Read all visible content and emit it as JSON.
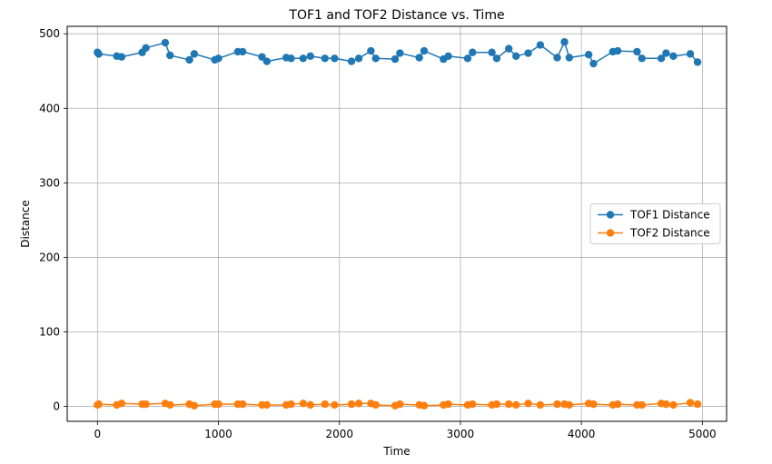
{
  "chart_data": {
    "type": "line",
    "title": "TOF1 and TOF2 Distance vs. Time",
    "xlabel": "Time",
    "ylabel": "Distance",
    "xlim": [
      -250,
      5200
    ],
    "ylim": [
      -20,
      510
    ],
    "xticks": [
      0,
      1000,
      2000,
      3000,
      4000,
      5000
    ],
    "yticks": [
      0,
      100,
      200,
      300,
      400,
      500
    ],
    "grid": true,
    "legend_position": "center-right",
    "series": [
      {
        "name": "TOF1 Distance",
        "color": "#1f77b4",
        "marker": "circle",
        "points": [
          [
            0,
            475
          ],
          [
            10,
            473
          ],
          [
            160,
            470
          ],
          [
            200,
            469
          ],
          [
            370,
            475
          ],
          [
            400,
            481
          ],
          [
            560,
            488
          ],
          [
            600,
            471
          ],
          [
            760,
            465
          ],
          [
            800,
            473
          ],
          [
            970,
            465
          ],
          [
            1000,
            467
          ],
          [
            1160,
            476
          ],
          [
            1200,
            476
          ],
          [
            1360,
            469
          ],
          [
            1400,
            463
          ],
          [
            1560,
            468
          ],
          [
            1600,
            467
          ],
          [
            1700,
            467
          ],
          [
            1760,
            470
          ],
          [
            1880,
            467
          ],
          [
            1960,
            467
          ],
          [
            2100,
            463
          ],
          [
            2160,
            467
          ],
          [
            2260,
            477
          ],
          [
            2300,
            467
          ],
          [
            2460,
            466
          ],
          [
            2500,
            474
          ],
          [
            2660,
            468
          ],
          [
            2700,
            477
          ],
          [
            2860,
            466
          ],
          [
            2900,
            470
          ],
          [
            3060,
            467
          ],
          [
            3100,
            475
          ],
          [
            3260,
            475
          ],
          [
            3300,
            467
          ],
          [
            3400,
            480
          ],
          [
            3460,
            470
          ],
          [
            3560,
            474
          ],
          [
            3660,
            485
          ],
          [
            3800,
            468
          ],
          [
            3860,
            489
          ],
          [
            3900,
            468
          ],
          [
            4060,
            472
          ],
          [
            4100,
            460
          ],
          [
            4260,
            476
          ],
          [
            4300,
            477
          ],
          [
            4460,
            476
          ],
          [
            4500,
            467
          ],
          [
            4660,
            467
          ],
          [
            4700,
            474
          ],
          [
            4760,
            470
          ],
          [
            4900,
            473
          ],
          [
            4960,
            462
          ]
        ]
      },
      {
        "name": "TOF2 Distance",
        "color": "#ff7f0e",
        "marker": "circle",
        "points": [
          [
            0,
            2
          ],
          [
            10,
            3
          ],
          [
            160,
            2
          ],
          [
            200,
            4
          ],
          [
            370,
            3
          ],
          [
            400,
            3
          ],
          [
            560,
            4
          ],
          [
            600,
            2
          ],
          [
            760,
            3
          ],
          [
            800,
            1
          ],
          [
            970,
            3
          ],
          [
            1000,
            3
          ],
          [
            1160,
            3
          ],
          [
            1200,
            3
          ],
          [
            1360,
            2
          ],
          [
            1400,
            2
          ],
          [
            1560,
            2
          ],
          [
            1600,
            3
          ],
          [
            1700,
            4
          ],
          [
            1760,
            2
          ],
          [
            1880,
            3
          ],
          [
            1960,
            2
          ],
          [
            2100,
            3
          ],
          [
            2160,
            4
          ],
          [
            2260,
            4
          ],
          [
            2300,
            2
          ],
          [
            2460,
            1
          ],
          [
            2500,
            3
          ],
          [
            2660,
            2
          ],
          [
            2700,
            1
          ],
          [
            2860,
            2
          ],
          [
            2900,
            3
          ],
          [
            3060,
            2
          ],
          [
            3100,
            3
          ],
          [
            3260,
            2
          ],
          [
            3300,
            3
          ],
          [
            3400,
            3
          ],
          [
            3460,
            2
          ],
          [
            3560,
            4
          ],
          [
            3660,
            2
          ],
          [
            3800,
            3
          ],
          [
            3860,
            3
          ],
          [
            3900,
            2
          ],
          [
            4060,
            4
          ],
          [
            4100,
            3
          ],
          [
            4260,
            2
          ],
          [
            4300,
            3
          ],
          [
            4460,
            2
          ],
          [
            4500,
            2
          ],
          [
            4660,
            4
          ],
          [
            4700,
            3
          ],
          [
            4760,
            2
          ],
          [
            4900,
            5
          ],
          [
            4960,
            3
          ]
        ]
      }
    ]
  }
}
